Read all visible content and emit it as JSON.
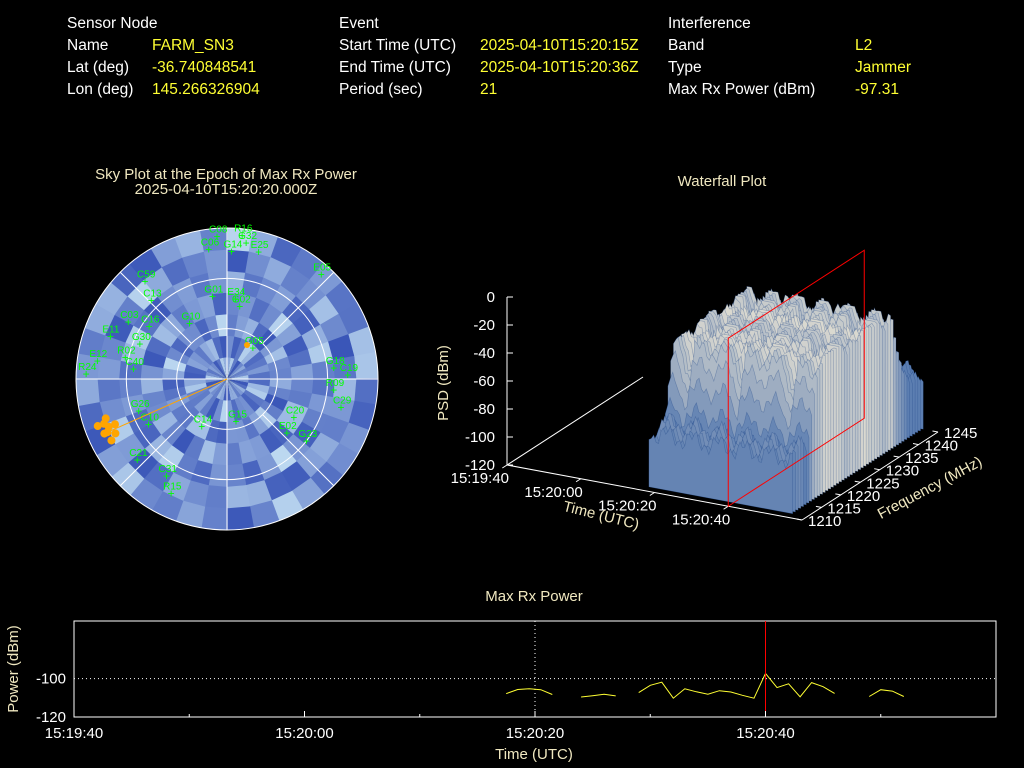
{
  "info": {
    "node_heading": "Sensor Node",
    "node_rows": [
      {
        "label": "Name",
        "value": "FARM_SN3"
      },
      {
        "label": "Lat (deg)",
        "value": "-36.740848541"
      },
      {
        "label": "Lon (deg)",
        "value": "145.266326904"
      }
    ],
    "event_heading": "Event",
    "event_rows": [
      {
        "label": "Start Time (UTC)",
        "value": "2025-04-10T15:20:15Z"
      },
      {
        "label": "End Time (UTC)",
        "value": "2025-04-10T15:20:36Z"
      },
      {
        "label": "Period (sec)",
        "value": "21"
      }
    ],
    "interference_heading": "Interference",
    "interference_rows": [
      {
        "label": "Band",
        "value": "L2"
      },
      {
        "label": "Type",
        "value": "Jammer"
      },
      {
        "label": "Max Rx Power (dBm)",
        "value": "-97.31"
      }
    ]
  },
  "chart_data": [
    {
      "type": "scatter",
      "title": "Sky Plot at the Epoch of Max Rx Power",
      "subtitle": "2025-04-10T15:20:20.000Z",
      "colors": {
        "grid": "#ffffff",
        "satellite": "#00ff00",
        "jammer": "#ffa500",
        "heat_low": "#3a56b8",
        "heat_high": "#bcd8f0"
      },
      "satellites": [
        {
          "id": "C08",
          "az": 356,
          "el": 5
        },
        {
          "id": "R16",
          "az": 6,
          "el": 4
        },
        {
          "id": "G32",
          "az": 8,
          "el": 8
        },
        {
          "id": "C06",
          "az": 352,
          "el": 12
        },
        {
          "id": "G14",
          "az": 2,
          "el": 14
        },
        {
          "id": "E25",
          "az": 14,
          "el": 12
        },
        {
          "id": "E05",
          "az": 42,
          "el": 6
        },
        {
          "id": "C59",
          "az": 320,
          "el": 14
        },
        {
          "id": "C13",
          "az": 316,
          "el": 25
        },
        {
          "id": "G01",
          "az": 350,
          "el": 40
        },
        {
          "id": "E34",
          "az": 6,
          "el": 42
        },
        {
          "id": "G02",
          "az": 10,
          "el": 46
        },
        {
          "id": "C03",
          "az": 300,
          "el": 22
        },
        {
          "id": "E11",
          "az": 290,
          "el": 16
        },
        {
          "id": "C16",
          "az": 304,
          "el": 34
        },
        {
          "id": "G30",
          "az": 292,
          "el": 34
        },
        {
          "id": "R02",
          "az": 282,
          "el": 28
        },
        {
          "id": "C40",
          "az": 276,
          "el": 34
        },
        {
          "id": "E12",
          "az": 278,
          "el": 12
        },
        {
          "id": "R24",
          "az": 272,
          "el": 6
        },
        {
          "id": "G10",
          "az": 326,
          "el": 50
        },
        {
          "id": "G05",
          "az": 40,
          "el": 66
        },
        {
          "id": "G18",
          "az": 84,
          "el": 26
        },
        {
          "id": "C19",
          "az": 88,
          "el": 18
        },
        {
          "id": "R09",
          "az": 96,
          "el": 26
        },
        {
          "id": "C29",
          "az": 104,
          "el": 20
        },
        {
          "id": "G23",
          "az": 128,
          "el": 30
        },
        {
          "id": "C20",
          "az": 120,
          "el": 44
        },
        {
          "id": "E02",
          "az": 132,
          "el": 42
        },
        {
          "id": "G15",
          "az": 168,
          "el": 64
        },
        {
          "id": "C14",
          "az": 208,
          "el": 58
        },
        {
          "id": "C21",
          "az": 228,
          "el": 18
        },
        {
          "id": "C31",
          "az": 212,
          "el": 22
        },
        {
          "id": "R15",
          "az": 206,
          "el": 14
        },
        {
          "id": "G26",
          "az": 250,
          "el": 34
        },
        {
          "id": "C10",
          "az": 240,
          "el": 36
        }
      ],
      "jammer_max": {
        "az": 128,
        "el": 10
      },
      "jammer_track": [
        {
          "az": 246,
          "el": 12
        },
        {
          "az": 248,
          "el": 14
        },
        {
          "az": 250,
          "el": 12
        },
        {
          "az": 246,
          "el": 10
        },
        {
          "az": 244,
          "el": 16
        },
        {
          "az": 250,
          "el": 8
        },
        {
          "az": 248,
          "el": 18
        },
        {
          "az": 252,
          "el": 14
        },
        {
          "az": 242,
          "el": 12
        }
      ]
    },
    {
      "type": "area",
      "title": "Waterfall Plot",
      "zlabel": "PSD (dBm)",
      "xlabel": "Time (UTC)",
      "ylabel": "Frequency (MHz)",
      "zticks": [
        "0",
        "-20",
        "-40",
        "-60",
        "-80",
        "-100",
        "-120"
      ],
      "zlim": [
        -120,
        0
      ],
      "time_ticks": [
        "15:19:40",
        "15:20:00",
        "15:20:20",
        "15:20:40"
      ],
      "freq_ticks": [
        "1210",
        "1215",
        "1220",
        "1225",
        "1230",
        "1235",
        "1240",
        "1245"
      ],
      "freq_range": [
        1210,
        1245
      ],
      "surface": {
        "data_time_start": "15:19:57",
        "data_time_end": "15:20:36",
        "peak_level": -25,
        "floor_level": -80,
        "band_low": 1215,
        "band_high": 1240
      },
      "marker_time": "15:20:20",
      "colors": {
        "marker": "#ff0000",
        "surface_low": "#2a5aa5",
        "surface_high": "#f2ead6",
        "axes": "#ffffff"
      }
    },
    {
      "type": "line",
      "title": "Max Rx Power",
      "xlabel": "Time (UTC)",
      "ylabel": "Power (dBm)",
      "yticks": [
        "-100",
        "-120"
      ],
      "xticks": [
        "15:19:40",
        "15:20:00",
        "15:20:20",
        "15:20:40"
      ],
      "xlim": [
        -40,
        40
      ],
      "ylim": [
        -120,
        -90
      ],
      "grid": true,
      "marker_time": 20,
      "colors": {
        "line": "#ffff33",
        "marker": "#ff0000",
        "grid": "#ffffff"
      },
      "segments": [
        [
          [
            -2.5,
            -107.8
          ],
          [
            -1.5,
            -105.7
          ],
          [
            -0.5,
            -105.3
          ],
          [
            0.5,
            -105.8
          ],
          [
            1.5,
            -108.3
          ]
        ],
        [
          [
            4.0,
            -109.6
          ],
          [
            5.0,
            -108.9
          ],
          [
            6.0,
            -108.1
          ],
          [
            7.0,
            -109.0
          ]
        ],
        [
          [
            9.0,
            -107.3
          ],
          [
            10.0,
            -103.5
          ],
          [
            11.0,
            -101.9
          ],
          [
            12.0,
            -110.2
          ],
          [
            13.0,
            -105.3
          ],
          [
            14.0,
            -106.9
          ],
          [
            15.0,
            -108.1
          ],
          [
            16.0,
            -106.3
          ],
          [
            17.0,
            -107.0
          ],
          [
            18.0,
            -108.7
          ],
          [
            19.0,
            -110.2
          ],
          [
            20.0,
            -97.3
          ],
          [
            21.0,
            -104.7
          ],
          [
            22.0,
            -102.7
          ],
          [
            23.0,
            -109.5
          ],
          [
            24.0,
            -102.1
          ],
          [
            25.0,
            -104.2
          ],
          [
            26.0,
            -107.7
          ]
        ],
        [
          [
            29.0,
            -109.3
          ],
          [
            30.0,
            -105.8
          ],
          [
            31.0,
            -106.5
          ],
          [
            32.0,
            -109.3
          ]
        ]
      ]
    }
  ]
}
